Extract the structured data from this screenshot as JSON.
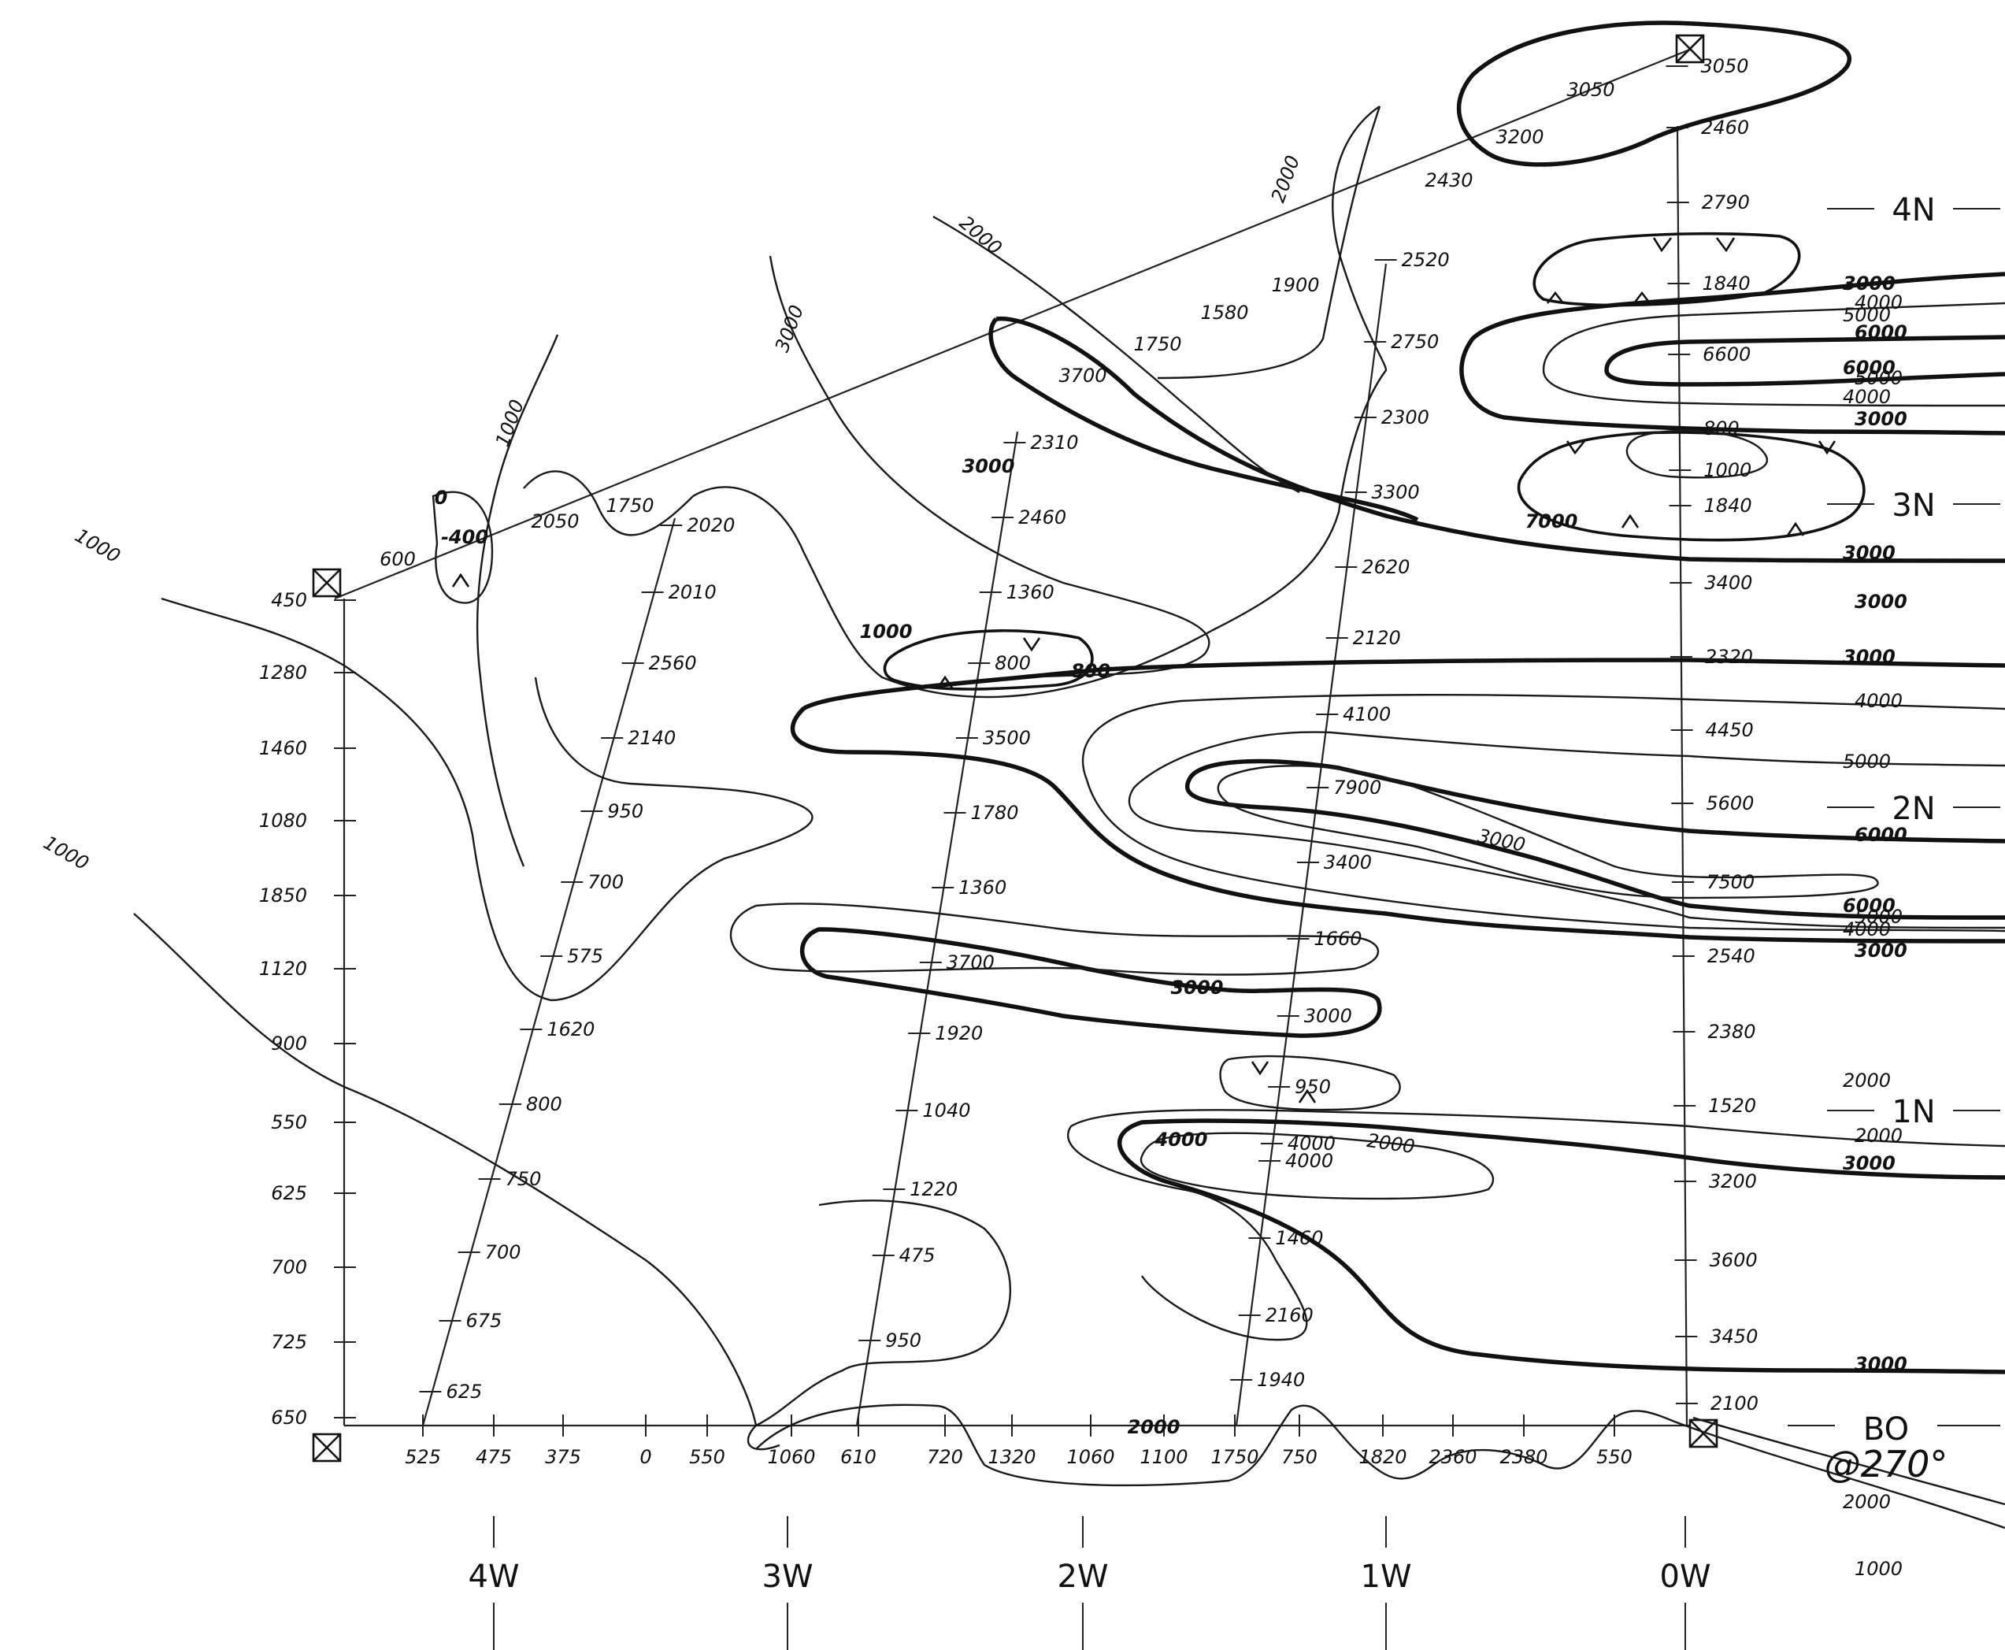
{
  "x_axis_labels": [
    "525",
    "475",
    "375",
    "0",
    "550",
    "1060",
    "610",
    "720",
    "1320",
    "1060",
    "1100",
    "1750",
    "750",
    "1820",
    "2360",
    "2380",
    "550"
  ],
  "y_axis_labels": [
    "450",
    "1280",
    "1460",
    "1080",
    "1850",
    "1120",
    "900",
    "550",
    "625",
    "700",
    "725",
    "650"
  ],
  "grid_labels": [
    "4W",
    "3W",
    "2W",
    "1W",
    "0W",
    "4N",
    "3N",
    "2N",
    "1N",
    "BO",
    "@270°"
  ],
  "contour_labels_right": [
    "3000",
    "4000",
    "5000",
    "6000",
    "6000",
    "5000",
    "4000",
    "3000",
    "3000",
    "3000",
    "3000",
    "4000",
    "5000",
    "6000",
    "6000",
    "5000",
    "4000",
    "3000",
    "2000",
    "2000",
    "3000",
    "3000",
    "2000",
    "1000"
  ],
  "contour_labels_left": [
    "1000",
    "1000",
    "1000",
    "0",
    "-400",
    "2000",
    "2000",
    "3000",
    "3000",
    "3000",
    "1000",
    "800",
    "3000",
    "2000",
    "7000",
    "4000",
    "2000"
  ],
  "line_0w_values": [
    "3050",
    "2460",
    "2790",
    "1840",
    "6600",
    "800",
    "1000",
    "1840",
    "3400",
    "2320",
    "4450",
    "5600",
    "7500",
    "2540",
    "2380",
    "1520",
    "3200",
    "3600",
    "3450",
    "2100"
  ],
  "line_1w_values": [
    "2520",
    "2750",
    "2300",
    "3300",
    "2620",
    "2120",
    "4100",
    "7900",
    "3400",
    "1660",
    "3000",
    "950",
    "4000",
    "4000",
    "1460",
    "2160",
    "1940"
  ],
  "line_2w_values": [
    "2310",
    "2460",
    "1360",
    "800",
    "3500",
    "1780",
    "1360",
    "3700",
    "1920",
    "1040",
    "1220",
    "475",
    "950"
  ],
  "line_3w_values": [
    "2020",
    "2010",
    "2560",
    "2140",
    "950",
    "700",
    "575",
    "1620",
    "800",
    "750",
    "700",
    "675",
    "625"
  ],
  "diagonal_values": [
    "600",
    "2050",
    "1750",
    "3700",
    "1750",
    "1580",
    "1900",
    "2430",
    "3200",
    "3050"
  ]
}
